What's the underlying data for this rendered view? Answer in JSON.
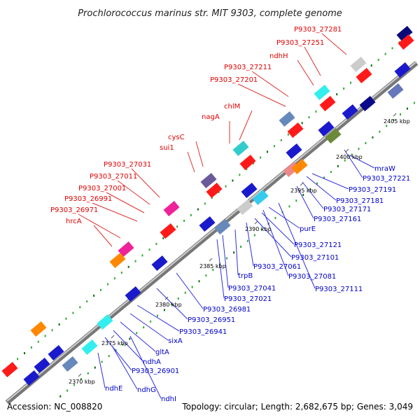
{
  "title": "Prochlorococcus marinus str. MIT 9303, complete genome",
  "footer": {
    "accession": "Accession: NC_008820",
    "summary": "Topology: circular; Length: 2,682,675 bp; Genes: 3,049"
  },
  "colors": {
    "forward_label": "#e00000",
    "reverse_label": "#0000cc",
    "forward_gene": "#ff1a1a",
    "reverse_gene": "#1a1acc",
    "axis": "#999999"
  },
  "ruler_ticks": [
    "2370 kbp",
    "2375 kbp",
    "2380 kbp",
    "2385 kbp",
    "2390 kbp",
    "2395 kbp",
    "2400 kbp",
    "2405 kbp"
  ],
  "forward_labels": [
    "P9303_27281",
    "P9303_27251",
    "ndhH",
    "P9303_27211",
    "P9303_27201",
    "chlM",
    "nagA",
    "cysC",
    "sui1",
    "P9303_27031",
    "P9303_27011",
    "P9303_27001",
    "P9303_26991",
    "P9303_26971",
    "hrcA"
  ],
  "reverse_labels": [
    "mraW",
    "P9303_27221",
    "P9303_27191",
    "P9303_27181",
    "P9303_27171",
    "P9303_27161",
    "purE",
    "P9303_27121",
    "P9303_27101",
    "P9303_27081",
    "P9303_27111",
    "trpB",
    "P9303_27061",
    "P9303_27041",
    "P9303_27021",
    "P9303_26981",
    "P9303_26951",
    "P9303_26941",
    "sixA",
    "gltA",
    "ndhA",
    "P9303_26901",
    "ndhE",
    "ndhG",
    "ndhI"
  ]
}
